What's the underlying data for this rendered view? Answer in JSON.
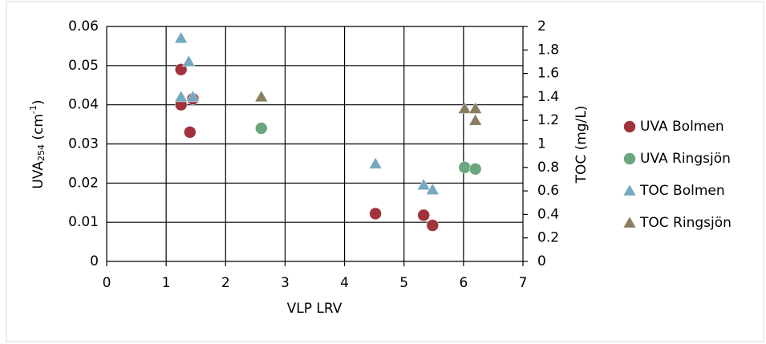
{
  "chart_data": {
    "type": "scatter",
    "xlabel": "VLP LRV",
    "ylabel": {
      "base": "UVA",
      "sub": "254",
      "mid": " (cm",
      "sup": "-1",
      "end": ")"
    },
    "y2label": "TOC (mg/L)",
    "xlim": [
      0,
      7
    ],
    "xticks": [
      0,
      1,
      2,
      3,
      4,
      5,
      6,
      7
    ],
    "ylim": [
      0,
      0.06
    ],
    "yticks": [
      0,
      0.01,
      0.02,
      0.03,
      0.04,
      0.05,
      0.06
    ],
    "y2lim": [
      0,
      2
    ],
    "y2ticks": [
      0,
      0.2,
      0.4,
      0.6,
      0.8,
      1,
      1.2,
      1.4,
      1.6,
      1.8,
      2
    ],
    "grid": true,
    "legend": "right",
    "series": [
      {
        "name": "UVA Bolmen",
        "color": "#a1323c",
        "marker": "circle",
        "x": [
          1.25,
          1.25,
          1.45,
          1.4,
          4.52,
          5.33,
          5.48
        ],
        "values": [
          0.049,
          0.04,
          0.0415,
          0.033,
          0.0122,
          0.0118,
          0.0092
        ]
      },
      {
        "name": "UVA Ringsjön",
        "color": "#6aa77f",
        "marker": "circle",
        "x": [
          2.6,
          6.02,
          6.2
        ],
        "values": [
          0.034,
          0.024,
          0.0236
        ]
      },
      {
        "name": "TOC Bolmen",
        "color": "#74a9c1",
        "marker": "triangle",
        "axis": "y2",
        "x": [
          1.25,
          1.38,
          1.25,
          1.45,
          4.52,
          5.33,
          5.48
        ],
        "values": [
          1.9,
          1.7,
          1.4,
          1.4,
          0.83,
          0.65,
          0.61
        ]
      },
      {
        "name": "TOC Ringsjön",
        "color": "#8b7d62",
        "marker": "triangle",
        "axis": "y2",
        "x": [
          2.6,
          6.02,
          6.2,
          6.2
        ],
        "values": [
          1.4,
          1.3,
          1.3,
          1.2
        ]
      }
    ]
  }
}
